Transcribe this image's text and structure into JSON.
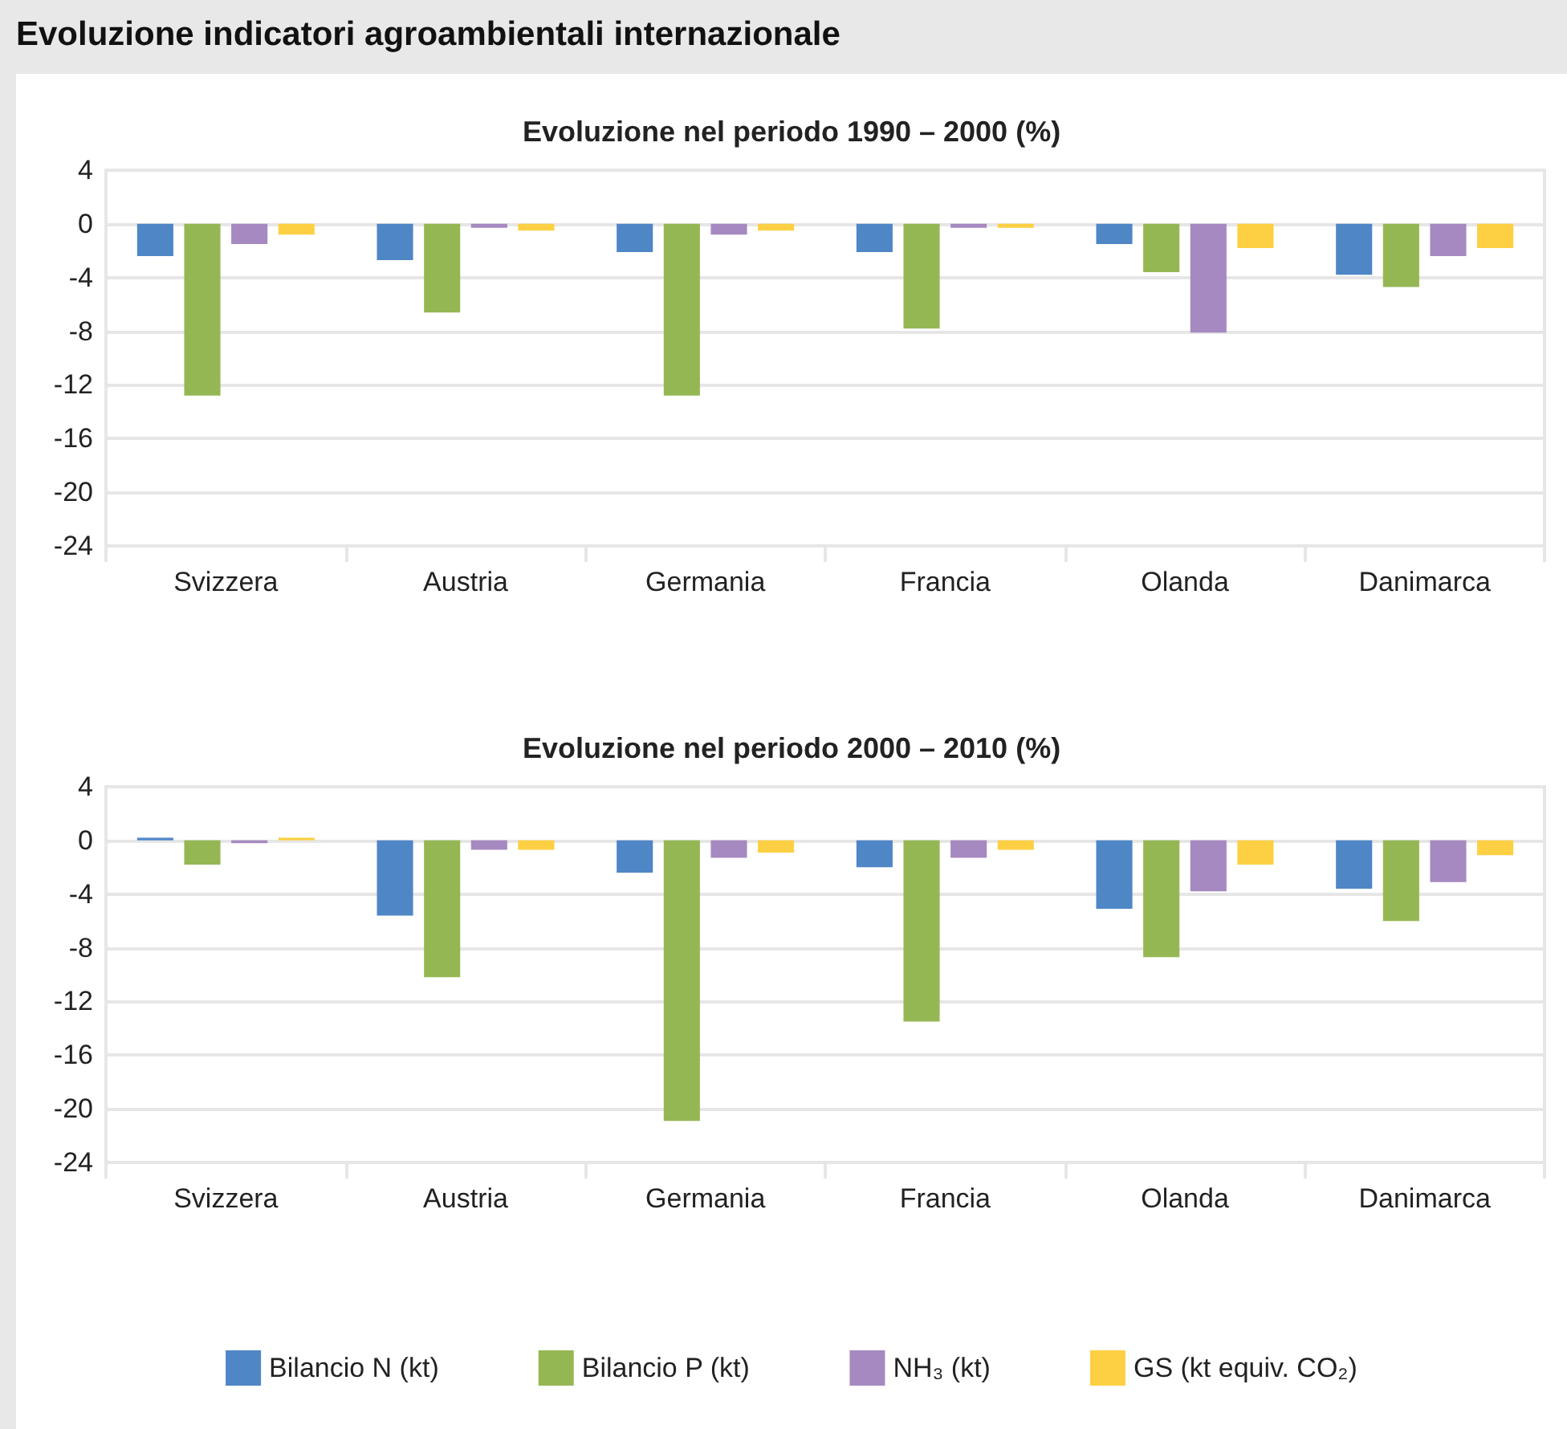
{
  "chart_data": [
    {
      "type": "bar",
      "title": "Evoluzione indicatori agroambientali internazionale",
      "subtitle": "Evoluzione nel periodo 1990 – 2000 (%)",
      "categories": [
        "Svizzera",
        "Austria",
        "Germania",
        "Francia",
        "Olanda",
        "Danimarca"
      ],
      "series": [
        {
          "color": "#4f86c6",
          "values": [
            -2.4,
            -2.7,
            -2.1,
            -2.1,
            -1.5,
            -3.8
          ]
        },
        {
          "color": "#95b753",
          "values": [
            -12.8,
            -6.6,
            -12.8,
            -7.8,
            -3.6,
            -4.7
          ]
        },
        {
          "color": "#a689c0",
          "values": [
            -1.5,
            -0.3,
            -0.8,
            -0.3,
            -8.1,
            -2.4
          ]
        },
        {
          "color": "#fdd043",
          "values": [
            -0.8,
            -0.5,
            -0.5,
            -0.3,
            -1.8,
            -1.8
          ]
        }
      ],
      "ylim": [
        -24,
        4
      ],
      "yticks": [
        -24,
        -20,
        -16,
        -12,
        -8,
        -4,
        0,
        4
      ],
      "grid": "y",
      "legend": false
    },
    {
      "type": "bar",
      "title": "Evoluzione nel periodo 2000 – 2010 (%)",
      "categories": [
        "Svizzera",
        "Austria",
        "Germania",
        "Francia",
        "Olanda",
        "Danimarca"
      ],
      "series": [
        {
          "name": "Bilancio N (kt)",
          "color": "#4f86c6",
          "values": [
            0.2,
            -5.6,
            -2.4,
            -2.0,
            -5.1,
            -3.6
          ]
        },
        {
          "name": "Bilancio P (kt)",
          "color": "#95b753",
          "values": [
            -1.8,
            -10.2,
            -20.9,
            -13.5,
            -8.7,
            -6.0
          ]
        },
        {
          "name": "NH₃ (kt)",
          "color": "#a689c0",
          "values": [
            -0.2,
            -0.7,
            -1.3,
            -1.3,
            -3.8,
            -3.1
          ]
        },
        {
          "name": "GS (kt equiv. CO₂)",
          "color": "#fdd043",
          "values": [
            0.2,
            -0.7,
            -0.9,
            -0.7,
            -1.8,
            -1.1
          ]
        }
      ],
      "ylim": [
        -24,
        4
      ],
      "yticks": [
        -24,
        -20,
        -16,
        -12,
        -8,
        -4,
        0,
        4
      ],
      "grid": "y",
      "legend": "bottom"
    }
  ]
}
